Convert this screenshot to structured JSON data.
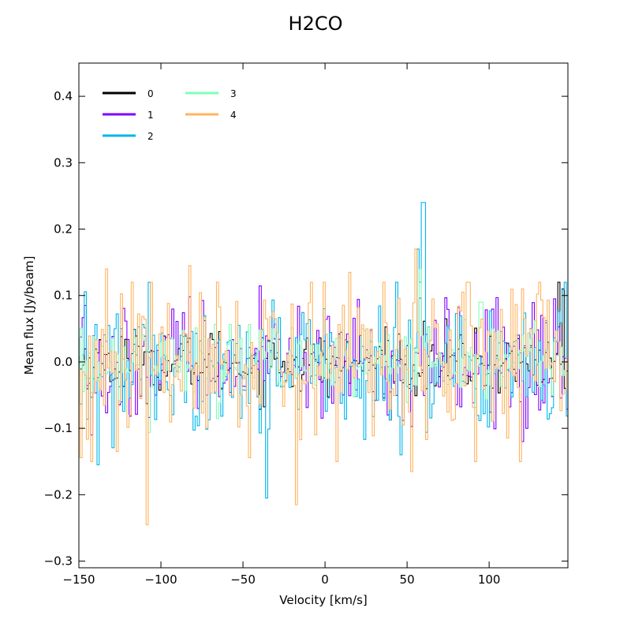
{
  "chart_data": {
    "type": "line",
    "drawstyle": "steps",
    "title": "H2CO",
    "xlabel": "Velocity  [km/s]",
    "ylabel": "Mean flux [Jy/beam]",
    "xlim": [
      -150,
      148
    ],
    "ylim": [
      -0.31,
      0.45
    ],
    "x_ticks": [
      -150,
      -100,
      -50,
      0,
      50,
      100
    ],
    "x_tick_labels": [
      "−150",
      "−100",
      "−50",
      "0",
      "50",
      "100"
    ],
    "y_ticks": [
      -0.3,
      -0.2,
      -0.1,
      0.0,
      0.1,
      0.2,
      0.3,
      0.4
    ],
    "y_tick_labels": [
      "−0.3",
      "−0.2",
      "−0.1",
      "0.0",
      "0.1",
      "0.2",
      "0.3",
      "0.4"
    ],
    "grid": false,
    "legend": {
      "placement": "top-left",
      "columns": 2
    },
    "channel_width_kms": 1.3,
    "series": [
      {
        "name": "0",
        "color": "#000000",
        "noise_sigma": 0.025,
        "features": [
          {
            "x": 142,
            "y": 0.12
          },
          {
            "x": 145,
            "y": 0.11
          }
        ]
      },
      {
        "name": "1",
        "color": "#8000ff",
        "noise_sigma": 0.045,
        "features": [
          {
            "x": -142,
            "y": -0.11
          },
          {
            "x": 140,
            "y": 0.095
          },
          {
            "x": 120,
            "y": -0.12
          },
          {
            "x": 123,
            "y": -0.1
          }
        ]
      },
      {
        "name": "2",
        "color": "#00b5eb",
        "noise_sigma": 0.05,
        "features": [
          {
            "x": 60,
            "y": 0.24
          },
          {
            "x": 57,
            "y": 0.17
          },
          {
            "x": 58,
            "y": 0.12
          },
          {
            "x": -138,
            "y": -0.155
          },
          {
            "x": -36,
            "y": -0.205
          },
          {
            "x": 46,
            "y": -0.14
          }
        ]
      },
      {
        "name": "3",
        "color": "#80ffb4",
        "noise_sigma": 0.03,
        "features": [
          {
            "x": 58,
            "y": 0.14
          },
          {
            "x": 95,
            "y": 0.09
          }
        ]
      },
      {
        "name": "4",
        "color": "#ffb360",
        "noise_sigma": 0.065,
        "features": [
          {
            "x": -108,
            "y": -0.245
          },
          {
            "x": -133,
            "y": 0.14
          },
          {
            "x": -82,
            "y": 0.145
          },
          {
            "x": -17,
            "y": -0.215
          },
          {
            "x": 55,
            "y": 0.17
          },
          {
            "x": 53,
            "y": -0.165
          },
          {
            "x": 15,
            "y": 0.135
          },
          {
            "x": 120,
            "y": 0.11
          }
        ]
      }
    ]
  }
}
